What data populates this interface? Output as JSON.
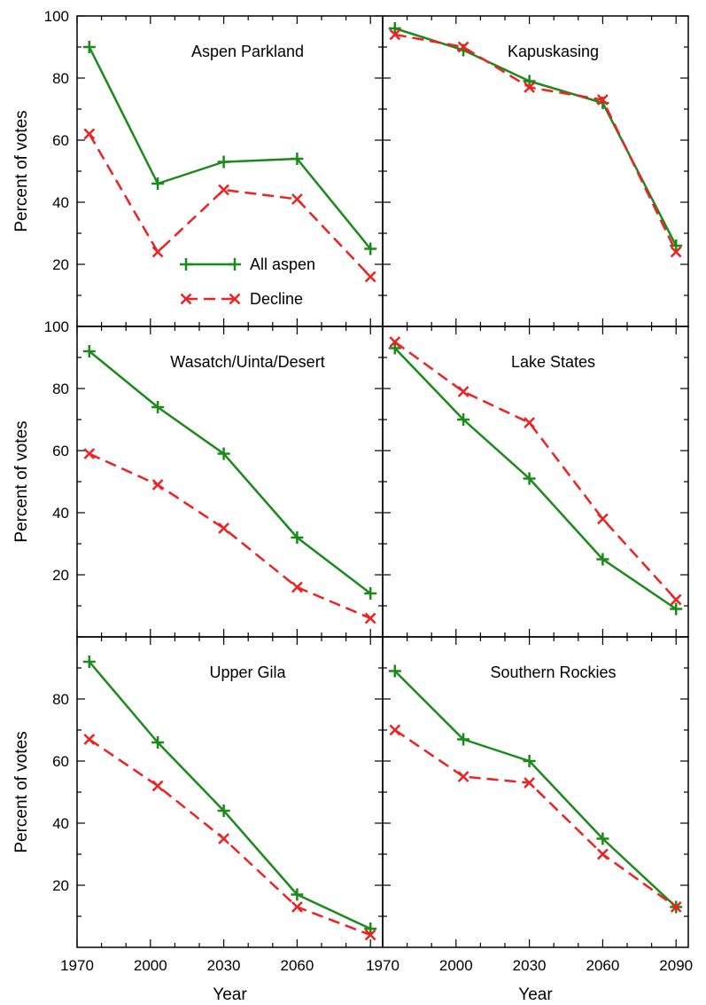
{
  "chart_data": [
    {
      "type": "line",
      "title": "Aspen Parkland",
      "xlabel": "",
      "ylabel": "Percent of votes",
      "x": [
        1975,
        2003,
        2030,
        2060,
        2090
      ],
      "xlim": [
        1970,
        2095
      ],
      "ylim": [
        0,
        100
      ],
      "series": [
        {
          "name": "All aspen",
          "color": "#1a8a1a",
          "marker": "plus",
          "dash": "solid",
          "values": [
            90,
            46,
            53,
            54,
            25
          ]
        },
        {
          "name": "Decline",
          "color": "#ee2222",
          "marker": "x",
          "dash": "dashed",
          "values": [
            62,
            24,
            44,
            41,
            16
          ]
        }
      ],
      "legend": "lower-center"
    },
    {
      "type": "line",
      "title": "Kapuskasing",
      "xlabel": "",
      "ylabel": "",
      "x": [
        1975,
        2003,
        2030,
        2060,
        2090
      ],
      "xlim": [
        1970,
        2095
      ],
      "ylim": [
        0,
        100
      ],
      "series": [
        {
          "name": "All aspen",
          "color": "#1a8a1a",
          "marker": "plus",
          "dash": "solid",
          "values": [
            96,
            89,
            79,
            72,
            26
          ]
        },
        {
          "name": "Decline",
          "color": "#ee2222",
          "marker": "x",
          "dash": "dashed",
          "values": [
            94,
            90,
            77,
            73,
            24
          ]
        }
      ]
    },
    {
      "type": "line",
      "title": "Wasatch/Uinta/Desert",
      "xlabel": "",
      "ylabel": "Percent of votes",
      "x": [
        1975,
        2003,
        2030,
        2060,
        2090
      ],
      "xlim": [
        1970,
        2095
      ],
      "ylim": [
        0,
        100
      ],
      "series": [
        {
          "name": "All aspen",
          "color": "#1a8a1a",
          "marker": "plus",
          "dash": "solid",
          "values": [
            92,
            74,
            59,
            32,
            14
          ]
        },
        {
          "name": "Decline",
          "color": "#ee2222",
          "marker": "x",
          "dash": "dashed",
          "values": [
            59,
            49,
            35,
            16,
            6
          ]
        }
      ]
    },
    {
      "type": "line",
      "title": "Lake States",
      "xlabel": "",
      "ylabel": "",
      "x": [
        1975,
        2003,
        2030,
        2060,
        2090
      ],
      "xlim": [
        1970,
        2095
      ],
      "ylim": [
        0,
        100
      ],
      "series": [
        {
          "name": "All aspen",
          "color": "#1a8a1a",
          "marker": "plus",
          "dash": "solid",
          "values": [
            93,
            70,
            51,
            25,
            9
          ]
        },
        {
          "name": "Decline",
          "color": "#ee2222",
          "marker": "x",
          "dash": "dashed",
          "values": [
            95,
            79,
            69,
            38,
            12
          ]
        }
      ]
    },
    {
      "type": "line",
      "title": "Upper Gila",
      "xlabel": "Year",
      "ylabel": "Percent of votes",
      "x": [
        1975,
        2003,
        2030,
        2060,
        2090
      ],
      "xlim": [
        1970,
        2095
      ],
      "ylim": [
        0,
        100
      ],
      "series": [
        {
          "name": "All aspen",
          "color": "#1a8a1a",
          "marker": "plus",
          "dash": "solid",
          "values": [
            92,
            66,
            44,
            17,
            6
          ]
        },
        {
          "name": "Decline",
          "color": "#ee2222",
          "marker": "x",
          "dash": "dashed",
          "values": [
            67,
            52,
            35,
            13,
            4
          ]
        }
      ]
    },
    {
      "type": "line",
      "title": "Southern Rockies",
      "xlabel": "Year",
      "ylabel": "",
      "x": [
        1975,
        2003,
        2030,
        2060,
        2090
      ],
      "xlim": [
        1970,
        2095
      ],
      "ylim": [
        0,
        100
      ],
      "series": [
        {
          "name": "All aspen",
          "color": "#1a8a1a",
          "marker": "plus",
          "dash": "solid",
          "values": [
            89,
            67,
            60,
            35,
            13
          ]
        },
        {
          "name": "Decline",
          "color": "#ee2222",
          "marker": "x",
          "dash": "dashed",
          "values": [
            70,
            55,
            53,
            30,
            13
          ]
        }
      ]
    }
  ],
  "axes": {
    "x_ticks_left": [
      "1970",
      "2000",
      "2030",
      "2060"
    ],
    "x_tick_values_left": [
      1970,
      2000,
      2030,
      2060
    ],
    "x_ticks_right": [
      "1970",
      "2000",
      "2030",
      "2060",
      "2090"
    ],
    "x_tick_values_right": [
      1970,
      2000,
      2030,
      2060,
      2090
    ],
    "x_minor_step": 10,
    "y_ticks_top": [
      "20",
      "40",
      "60",
      "80",
      "100"
    ],
    "y_tick_values_top": [
      20,
      40,
      60,
      80,
      100
    ],
    "y_ticks_lower": [
      "20",
      "40",
      "60",
      "80",
      "100"
    ],
    "y_tick_values_lower": [
      20,
      40,
      60,
      80,
      100
    ],
    "y_ticks_bottom": [
      "20",
      "40",
      "60",
      "80"
    ],
    "y_tick_values_bottom": [
      20,
      40,
      60,
      80
    ],
    "y_minor_step": 10
  }
}
